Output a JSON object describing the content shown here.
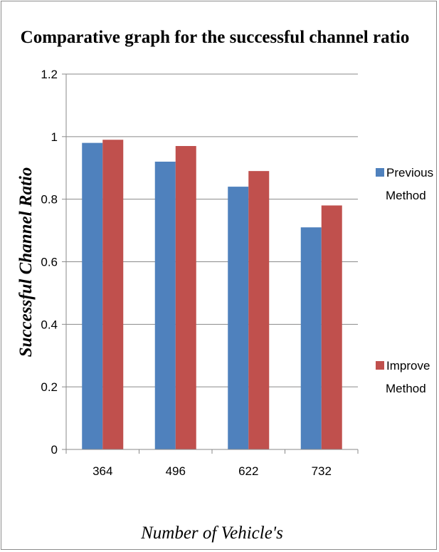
{
  "chart_data": {
    "type": "bar",
    "title": "Comparative graph for the successful channel ratio",
    "xlabel": "Number of Vehicle's",
    "ylabel": "Successful Channel Ratio",
    "categories": [
      "364",
      "496",
      "622",
      "732"
    ],
    "series": [
      {
        "name": "Previous Method",
        "name_lines": [
          "Previous",
          "Method"
        ],
        "color": "#4f81bd",
        "values": [
          0.98,
          0.92,
          0.84,
          0.71
        ]
      },
      {
        "name": "Improve Method",
        "name_lines": [
          "Improve",
          "Method"
        ],
        "color": "#c0504d",
        "values": [
          0.99,
          0.97,
          0.89,
          0.78
        ]
      }
    ],
    "ylim": [
      0,
      1.2
    ],
    "yticks": [
      "0",
      "0.2",
      "0.4",
      "0.6",
      "0.8",
      "1",
      "1.2"
    ],
    "grid": true,
    "legend_position": "right"
  }
}
